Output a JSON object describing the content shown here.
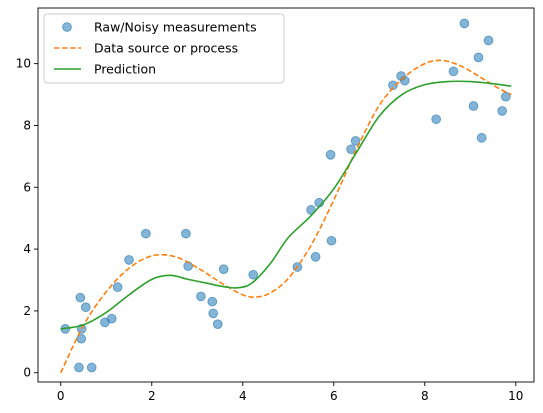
{
  "chart_data": {
    "type": "scatter",
    "title": "",
    "xlabel": "",
    "ylabel": "",
    "xlim": [
      -0.5,
      10.4
    ],
    "ylim": [
      -0.3,
      11.8
    ],
    "x_ticks": [
      0,
      2,
      4,
      6,
      8,
      10
    ],
    "y_ticks": [
      0,
      2,
      4,
      6,
      8,
      10
    ],
    "grid": false,
    "legend_position": "top-left",
    "series": [
      {
        "name": "Raw/Noisy measurements",
        "kind": "scatter",
        "color": "#1f77b4",
        "points": [
          [
            0.1,
            1.42
          ],
          [
            0.4,
            0.17
          ],
          [
            0.43,
            2.43
          ],
          [
            0.45,
            1.1
          ],
          [
            0.46,
            1.42
          ],
          [
            0.55,
            2.12
          ],
          [
            0.68,
            0.17
          ],
          [
            0.97,
            1.63
          ],
          [
            1.12,
            1.75
          ],
          [
            1.25,
            2.77
          ],
          [
            1.5,
            3.65
          ],
          [
            1.87,
            4.5
          ],
          [
            2.75,
            4.5
          ],
          [
            2.8,
            3.45
          ],
          [
            3.08,
            2.47
          ],
          [
            3.33,
            2.3
          ],
          [
            3.35,
            1.92
          ],
          [
            3.45,
            1.57
          ],
          [
            3.58,
            3.35
          ],
          [
            4.23,
            3.17
          ],
          [
            5.2,
            3.42
          ],
          [
            5.5,
            5.27
          ],
          [
            5.6,
            3.75
          ],
          [
            5.68,
            5.5
          ],
          [
            5.93,
            7.05
          ],
          [
            5.95,
            4.27
          ],
          [
            6.38,
            7.23
          ],
          [
            6.48,
            7.5
          ],
          [
            7.3,
            9.3
          ],
          [
            7.48,
            9.6
          ],
          [
            7.56,
            9.45
          ],
          [
            8.25,
            8.2
          ],
          [
            8.63,
            9.75
          ],
          [
            8.87,
            11.3
          ],
          [
            9.07,
            8.63
          ],
          [
            9.18,
            10.2
          ],
          [
            9.25,
            7.6
          ],
          [
            9.4,
            10.75
          ],
          [
            9.7,
            8.47
          ],
          [
            9.78,
            8.93
          ]
        ]
      },
      {
        "name": "Data source or process",
        "kind": "line-dashed",
        "color": "#ff7f0e",
        "points": [
          [
            0,
            0.0
          ],
          [
            0.5,
            1.53
          ],
          [
            1.0,
            2.62
          ],
          [
            1.5,
            3.38
          ],
          [
            2.0,
            3.78
          ],
          [
            2.5,
            3.76
          ],
          [
            3.0,
            3.4
          ],
          [
            3.5,
            2.93
          ],
          [
            4.0,
            2.52
          ],
          [
            4.3,
            2.45
          ],
          [
            4.6,
            2.58
          ],
          [
            5.0,
            3.05
          ],
          [
            5.5,
            4.12
          ],
          [
            6.0,
            5.59
          ],
          [
            6.5,
            7.23
          ],
          [
            7.0,
            8.65
          ],
          [
            7.5,
            9.5
          ],
          [
            8.0,
            10.0
          ],
          [
            8.4,
            10.1
          ],
          [
            8.8,
            9.92
          ],
          [
            9.2,
            9.58
          ],
          [
            9.6,
            9.22
          ],
          [
            9.9,
            9.0
          ]
        ]
      },
      {
        "name": "Prediction",
        "kind": "line",
        "color": "#2ca02c",
        "points": [
          [
            0,
            1.42
          ],
          [
            0.5,
            1.55
          ],
          [
            1.0,
            1.95
          ],
          [
            1.5,
            2.52
          ],
          [
            2.0,
            3.02
          ],
          [
            2.4,
            3.15
          ],
          [
            2.8,
            3.02
          ],
          [
            3.2,
            2.9
          ],
          [
            3.6,
            2.78
          ],
          [
            3.9,
            2.75
          ],
          [
            4.2,
            2.9
          ],
          [
            4.6,
            3.52
          ],
          [
            5.0,
            4.37
          ],
          [
            5.5,
            5.08
          ],
          [
            6.0,
            5.95
          ],
          [
            6.5,
            7.13
          ],
          [
            7.0,
            8.3
          ],
          [
            7.5,
            9.0
          ],
          [
            8.0,
            9.32
          ],
          [
            8.5,
            9.42
          ],
          [
            9.0,
            9.42
          ],
          [
            9.5,
            9.35
          ],
          [
            9.9,
            9.27
          ]
        ]
      }
    ]
  }
}
